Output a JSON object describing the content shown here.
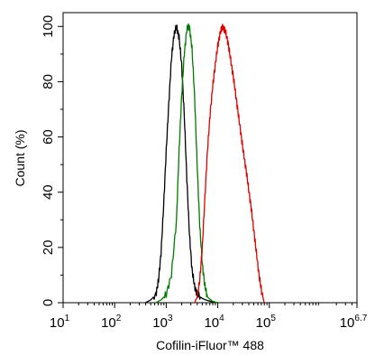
{
  "chart_data": {
    "type": "line",
    "title": "",
    "xlabel": "Cofilin-iFluor™ 488",
    "ylabel": "Count  (%)",
    "x_scale": "log",
    "xlim": [
      10,
      5011872
    ],
    "ylim": [
      0,
      105
    ],
    "x_ticks": [
      {
        "value": 10,
        "base": "10",
        "exp": "1"
      },
      {
        "value": 100,
        "base": "10",
        "exp": "2"
      },
      {
        "value": 1000,
        "base": "10",
        "exp": "3"
      },
      {
        "value": 10000,
        "base": "10",
        "exp": "4"
      },
      {
        "value": 100000,
        "base": "10",
        "exp": "5"
      },
      {
        "value": 5011872,
        "base": "10",
        "exp": "6.7"
      }
    ],
    "y_ticks": [
      {
        "value": 0,
        "label": "0"
      },
      {
        "value": 20,
        "label": "20"
      },
      {
        "value": 40,
        "label": "40"
      },
      {
        "value": 60,
        "label": "60"
      },
      {
        "value": 80,
        "label": "80"
      },
      {
        "value": 100,
        "label": "100"
      }
    ],
    "grid": false,
    "legend": "none",
    "series": [
      {
        "color": "#000000",
        "x": [
          398,
          501,
          631,
          708,
          794,
          891,
          1000,
          1122,
          1259,
          1413,
          1585,
          1778,
          1995,
          2239,
          2512,
          2818,
          3162,
          3548,
          3981,
          5012,
          6310,
          7943,
          10000
        ],
        "y": [
          0,
          1,
          3,
          8,
          18,
          35,
          55,
          72,
          88,
          97,
          100,
          96,
          86,
          68,
          45,
          25,
          12,
          6,
          3,
          1.5,
          0.8,
          0.3,
          0
        ]
      },
      {
        "color": "#007a00",
        "x": [
          631,
          794,
          1000,
          1259,
          1585,
          1778,
          1995,
          2239,
          2512,
          2818,
          3162,
          3548,
          3981,
          4467,
          5012,
          5623,
          6310,
          7943,
          10000
        ],
        "y": [
          0,
          1,
          3,
          10,
          30,
          55,
          75,
          90,
          99,
          100,
          92,
          75,
          50,
          28,
          14,
          6,
          2,
          0.5,
          0
        ]
      },
      {
        "color": "#dd0000",
        "x": [
          3548,
          3981,
          4467,
          5012,
          5623,
          6310,
          7079,
          7943,
          8913,
          10000,
          11220,
          12589,
          14125,
          15849,
          17783,
          19953,
          22387,
          25119,
          28184,
          31623,
          35481,
          39811,
          44668,
          50119,
          56234,
          63096,
          70795,
          79433
        ],
        "y": [
          0,
          2,
          8,
          20,
          38,
          55,
          68,
          78,
          86,
          93,
          98,
          100,
          98,
          94,
          88,
          82,
          75,
          68,
          61,
          54,
          48,
          41,
          34,
          26,
          18,
          10,
          4,
          0
        ]
      }
    ]
  }
}
